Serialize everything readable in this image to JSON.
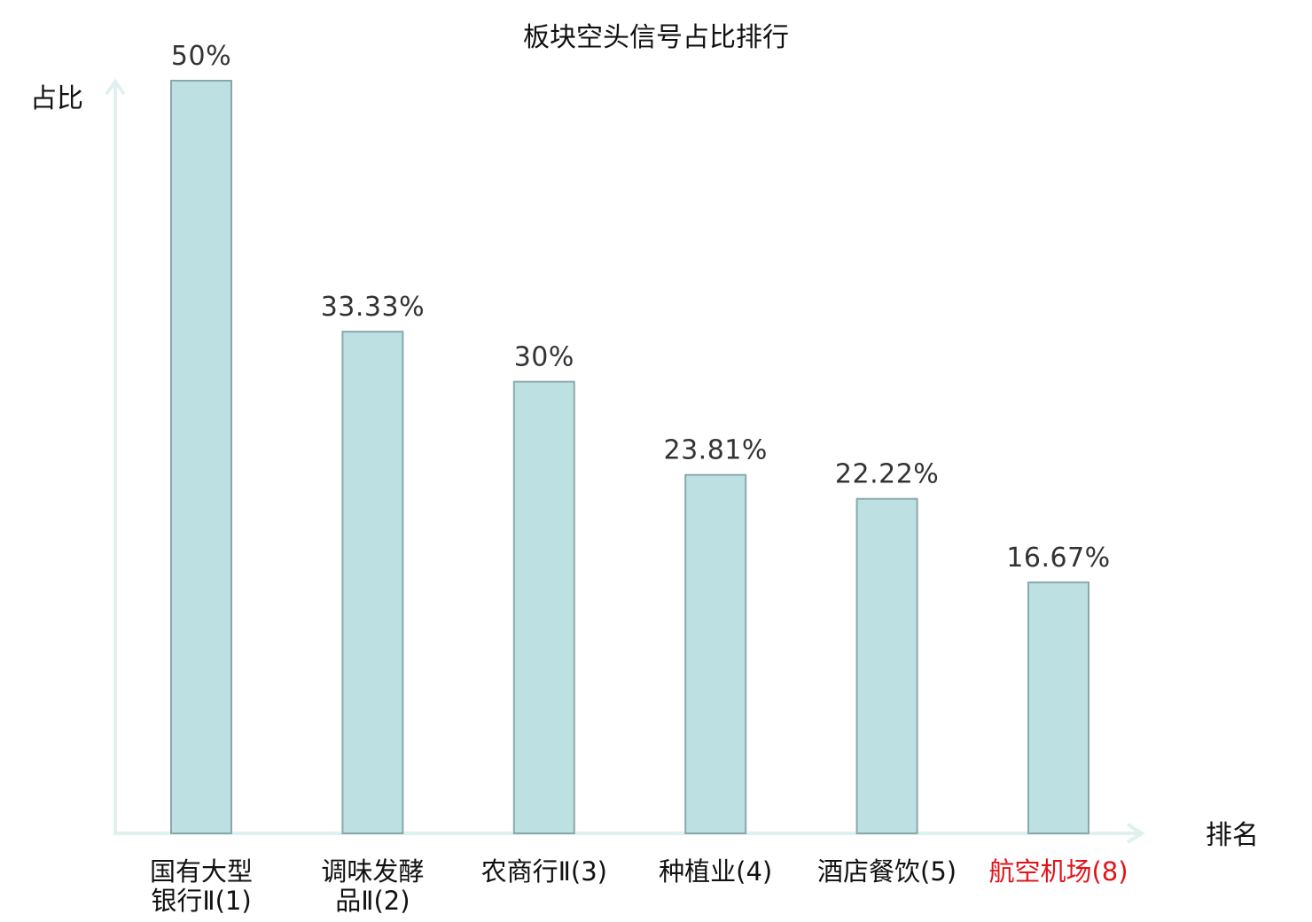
{
  "chart_data": {
    "type": "bar",
    "title": "板块空头信号占比排行",
    "ylabel": "占比",
    "xlabel": "排名",
    "ylim": [
      0,
      50
    ],
    "grid": false,
    "categories": [
      [
        "国有大型",
        "银行Ⅱ(1)"
      ],
      [
        "调味发酵",
        "品Ⅱ(2)"
      ],
      [
        "农商行Ⅱ(3)"
      ],
      [
        "种植业(4)"
      ],
      [
        "酒店餐饮(5)"
      ],
      [
        "航空机场(8)"
      ]
    ],
    "values": [
      50,
      33.33,
      30,
      23.81,
      22.22,
      16.67
    ],
    "value_labels": [
      "50%",
      "33.33%",
      "30%",
      "23.81%",
      "22.22%",
      "16.67%"
    ],
    "highlight_index": 5,
    "colors": {
      "bar_fill": "#bde0e3",
      "bar_stroke": "#8aa8aa",
      "axis": "#dff1ef",
      "highlight_text": "#e0141a"
    }
  }
}
